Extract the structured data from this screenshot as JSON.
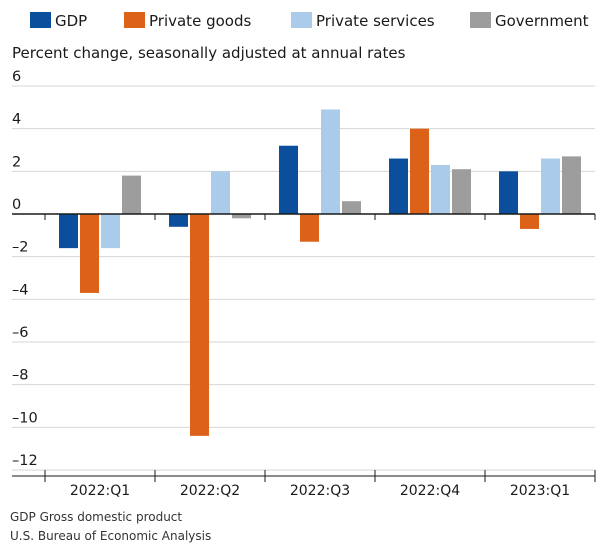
{
  "chart_data": {
    "type": "bar",
    "ylabel": "Percent change, seasonally adjusted at annual rates",
    "categories": [
      "2022:Q1",
      "2022:Q2",
      "2022:Q3",
      "2022:Q4",
      "2023:Q1"
    ],
    "ylim": [
      -12,
      6
    ],
    "yticks": [
      6,
      4,
      2,
      0,
      -2,
      -4,
      -6,
      -8,
      -10,
      -12
    ],
    "ytick_labels": [
      "6",
      "4",
      "2",
      "0",
      "–2",
      "–4",
      "–6",
      "–8",
      "–10",
      "–12"
    ],
    "grid": true,
    "legend_position": "top",
    "series": [
      {
        "name": "GDP",
        "color": "#0b4e9c",
        "values": [
          -1.6,
          -0.6,
          3.2,
          2.6,
          2.0
        ]
      },
      {
        "name": "Private goods",
        "color": "#dd6219",
        "values": [
          -3.7,
          -10.4,
          -1.3,
          4.0,
          -0.7
        ]
      },
      {
        "name": "Private services",
        "color": "#aacbea",
        "values": [
          -1.6,
          2.0,
          4.9,
          2.3,
          2.6
        ]
      },
      {
        "name": "Government",
        "color": "#9d9d9d",
        "values": [
          1.8,
          -0.2,
          0.6,
          2.1,
          2.7
        ]
      }
    ]
  },
  "notes": {
    "abbreviation": "GDP Gross domestic product",
    "source": "U.S. Bureau of Economic Analysis"
  }
}
